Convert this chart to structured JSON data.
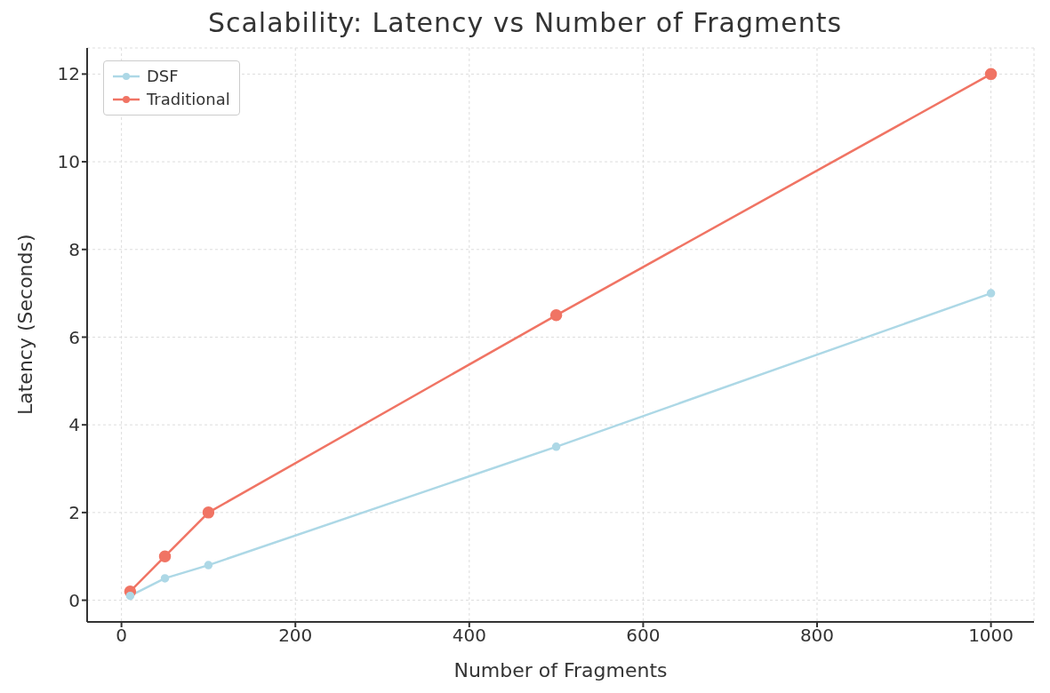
{
  "chart_data": {
    "type": "line",
    "title": "Scalability: Latency vs Number of Fragments",
    "xlabel": "Number of Fragments",
    "ylabel": "Latency (Seconds)",
    "x": [
      10,
      50,
      100,
      500,
      1000
    ],
    "series": [
      {
        "name": "DSF",
        "color": "#add8e6",
        "values": [
          0.1,
          0.5,
          0.8,
          3.5,
          7
        ]
      },
      {
        "name": "Traditional",
        "color": "#f07464",
        "values": [
          0.2,
          1,
          2,
          6.5,
          12
        ]
      }
    ],
    "xlim": [
      -39.5,
      1049.5
    ],
    "xticks": [
      0,
      200,
      400,
      600,
      800,
      1000
    ],
    "ylim": [
      -0.495,
      12.595
    ],
    "yticks": [
      0,
      2,
      4,
      6,
      8,
      10,
      12
    ],
    "grid": true,
    "legend": "top left",
    "marker": "circle",
    "line_style": "solid"
  }
}
